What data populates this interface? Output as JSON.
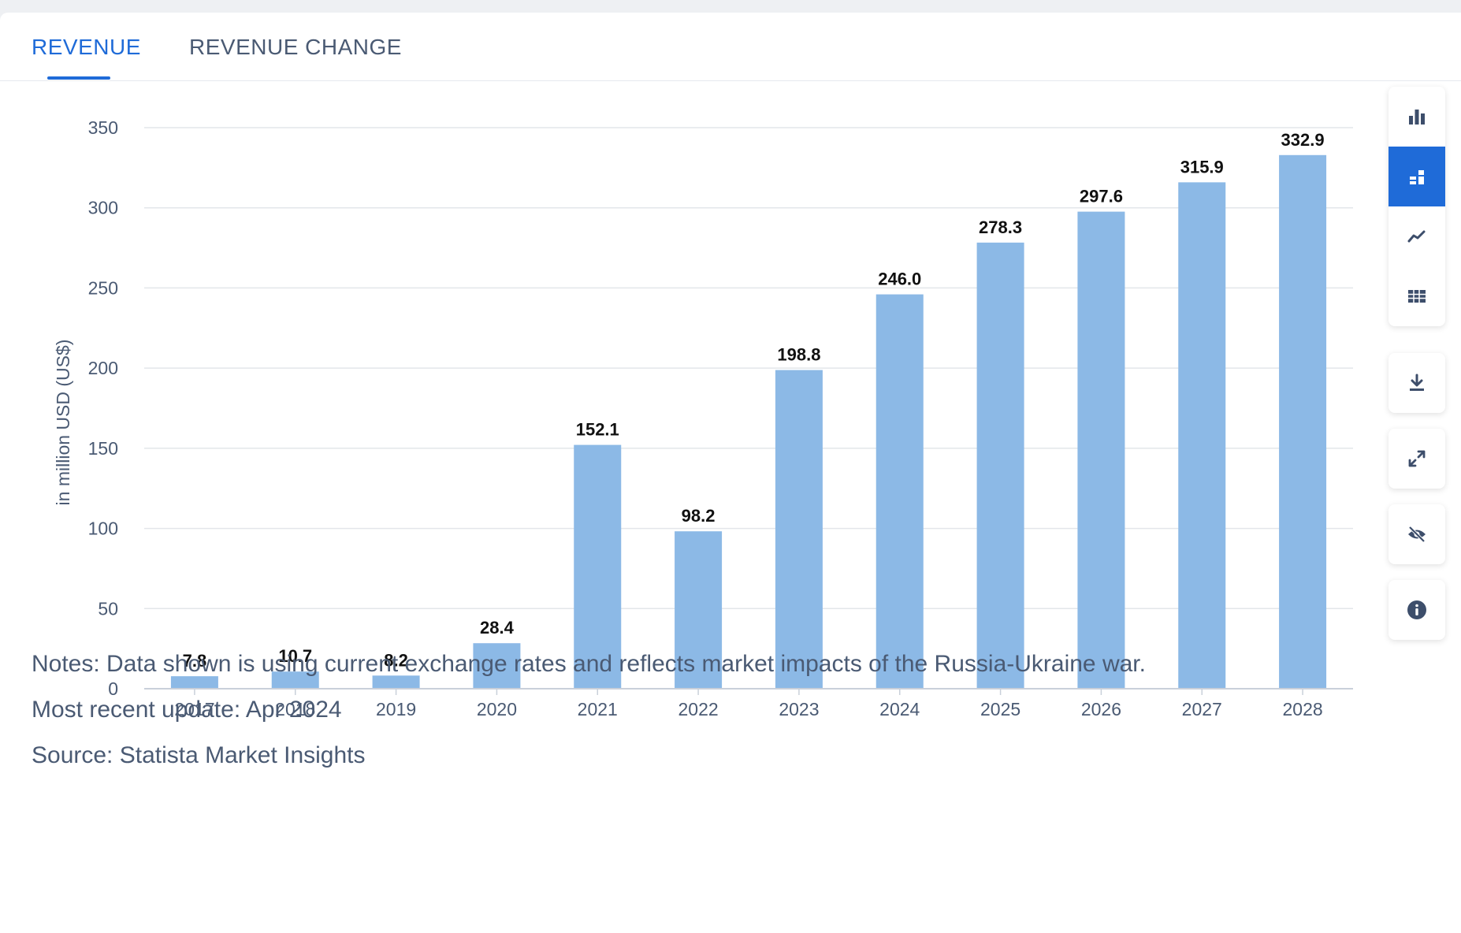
{
  "tabs": [
    {
      "label": "REVENUE",
      "active": true
    },
    {
      "label": "REVENUE CHANGE",
      "active": false
    }
  ],
  "chart_data": {
    "type": "bar",
    "categories": [
      "2017",
      "2018",
      "2019",
      "2020",
      "2021",
      "2022",
      "2023",
      "2024",
      "2025",
      "2026",
      "2027",
      "2028"
    ],
    "values": [
      7.8,
      10.7,
      8.2,
      28.4,
      152.1,
      98.2,
      198.8,
      246.0,
      278.3,
      297.6,
      315.9,
      332.9
    ],
    "data_labels": [
      "7.8",
      "10.7",
      "8.2",
      "28.4",
      "152.1",
      "98.2",
      "198.8",
      "246.0",
      "278.3",
      "297.6",
      "315.9",
      "332.9"
    ],
    "ylabel": "in million USD (US$)",
    "ylim": [
      0,
      350
    ],
    "yticks": [
      0,
      50,
      100,
      150,
      200,
      250,
      300,
      350
    ],
    "grid": true,
    "bar_color": "#8cb9e6"
  },
  "toolbar": {
    "icons": [
      "bar-chart-icon",
      "stacked-chart-icon",
      "line-chart-icon",
      "table-icon"
    ],
    "active": "stacked-chart-icon",
    "download": "download-icon",
    "fullscreen": "fullscreen-icon",
    "hide": "hide-icon",
    "info": "info-icon"
  },
  "notes": {
    "note": "Notes: Data shown is using current exchange rates and reflects market impacts of the Russia-Ukraine war.",
    "update": "Most recent update: Apr 2024",
    "source": "Source: Statista Market Insights"
  },
  "colors": {
    "accent": "#1f6bd8",
    "text": "#4a5a73",
    "bar": "#8cb9e6"
  }
}
